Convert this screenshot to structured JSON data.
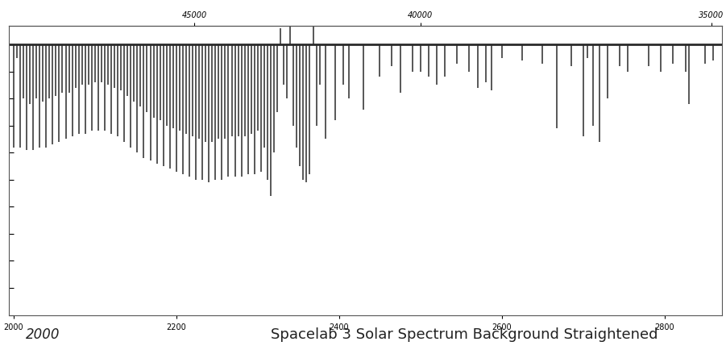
{
  "chart_data": {
    "type": "spectrum",
    "title": "Spacelab 3 Solar Spectrum Background Straightened",
    "annotation": "2000",
    "color": "#2a2a2a",
    "continuum": 1.0,
    "x": [
      2000,
      2004,
      2008,
      2012,
      2016,
      2020,
      2024,
      2028,
      2032,
      2036,
      2040,
      2044,
      2048,
      2052,
      2056,
      2060,
      2064,
      2068,
      2072,
      2076,
      2080,
      2084,
      2088,
      2092,
      2096,
      2100,
      2104,
      2108,
      2112,
      2116,
      2120,
      2124,
      2128,
      2132,
      2136,
      2140,
      2144,
      2148,
      2152,
      2156,
      2160,
      2164,
      2168,
      2172,
      2176,
      2180,
      2184,
      2188,
      2192,
      2196,
      2200,
      2204,
      2208,
      2212,
      2216,
      2220,
      2224,
      2228,
      2232,
      2236,
      2240,
      2244,
      2248,
      2252,
      2256,
      2260,
      2264,
      2268,
      2272,
      2276,
      2280,
      2284,
      2288,
      2292,
      2296,
      2300,
      2304,
      2308,
      2312,
      2316,
      2320,
      2324,
      2328,
      2332,
      2336,
      2340,
      2344,
      2348,
      2352,
      2356,
      2360,
      2364,
      2368,
      2372,
      2376,
      2383,
      2395,
      2405,
      2412,
      2430,
      2450,
      2465,
      2475,
      2490,
      2500,
      2510,
      2520,
      2530,
      2545,
      2560,
      2570,
      2580,
      2587,
      2600,
      2625,
      2650,
      2668,
      2685,
      2700,
      2705,
      2712,
      2720,
      2730,
      2745,
      2755,
      2780,
      2795,
      2810,
      2826,
      2830,
      2850,
      2860
    ],
    "values": [
      0.62,
      0.95,
      0.62,
      0.8,
      0.61,
      0.78,
      0.61,
      0.8,
      0.62,
      0.79,
      0.62,
      0.8,
      0.63,
      0.81,
      0.64,
      0.82,
      0.65,
      0.82,
      0.66,
      0.84,
      0.67,
      0.85,
      0.67,
      0.85,
      0.68,
      0.86,
      0.68,
      0.86,
      0.68,
      0.85,
      0.67,
      0.84,
      0.66,
      0.83,
      0.64,
      0.81,
      0.62,
      0.79,
      0.6,
      0.77,
      0.58,
      0.75,
      0.57,
      0.73,
      0.56,
      0.72,
      0.55,
      0.7,
      0.54,
      0.69,
      0.53,
      0.68,
      0.52,
      0.67,
      0.51,
      0.66,
      0.5,
      0.65,
      0.5,
      0.64,
      0.49,
      0.64,
      0.5,
      0.65,
      0.5,
      0.65,
      0.51,
      0.66,
      0.51,
      0.66,
      0.51,
      0.66,
      0.52,
      0.67,
      0.52,
      0.68,
      0.53,
      0.62,
      0.5,
      0.44,
      0.6,
      0.75,
      1.06,
      0.85,
      0.8,
      1.07,
      0.7,
      0.62,
      0.55,
      0.5,
      0.49,
      0.52,
      1.07,
      0.7,
      0.85,
      0.65,
      0.72,
      0.85,
      0.8,
      0.76,
      0.88,
      0.92,
      0.82,
      0.9,
      0.9,
      0.88,
      0.85,
      0.88,
      0.93,
      0.9,
      0.84,
      0.86,
      0.83,
      0.95,
      0.94,
      0.93,
      0.69,
      0.92,
      0.66,
      0.95,
      0.7,
      0.64,
      0.8,
      0.92,
      0.9,
      0.92,
      0.9,
      0.93,
      0.9,
      0.78,
      0.93,
      0.94
    ],
    "xlim": [
      1994,
      2871
    ],
    "xticks": [
      2000,
      2200,
      2400,
      2600,
      2800
    ],
    "x2ticks": [
      45000,
      40000,
      35000
    ],
    "ylim": [
      0,
      1.07
    ],
    "yticks": [
      0,
      0.1,
      0.2,
      0.3,
      0.4,
      0.5,
      0.6,
      0.7,
      0.8,
      0.9,
      1.0
    ],
    "tick_labels": "x"
  }
}
